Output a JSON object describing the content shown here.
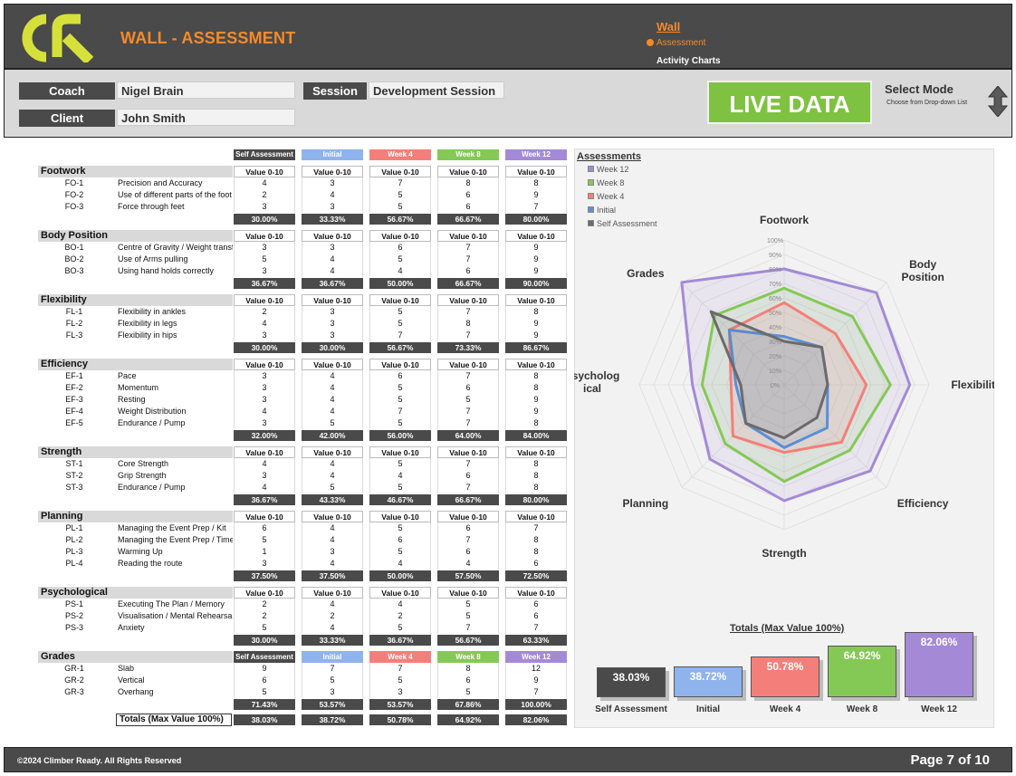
{
  "header": {
    "app_title": "WALL - ASSESSMENT",
    "nav_wall": "Wall",
    "nav_assessment": "Assessment",
    "nav_activity": "Activity Charts",
    "brand_color": "#f58a2a",
    "logo_color": "#d6e03a"
  },
  "info": {
    "coach_label": "Coach",
    "coach_value": "Nigel Brain",
    "client_label": "Client",
    "client_value": "John Smith",
    "session_label": "Session",
    "session_value": "Development Session",
    "live_button": "LIVE DATA",
    "mode_title": "Select Mode",
    "mode_hint": "Choose from Drop-down List"
  },
  "columns": [
    {
      "name": "Self Assessment",
      "color": "#4a4a4a"
    },
    {
      "name": "Initial",
      "color": "#8fb3ec"
    },
    {
      "name": "Week 4",
      "color": "#f47f7a"
    },
    {
      "name": "Week 8",
      "color": "#84c956"
    },
    {
      "name": "Week 12",
      "color": "#a48ad6"
    }
  ],
  "value_header": "Value 0-10",
  "sections": [
    {
      "name": "Footwork",
      "rows": [
        {
          "code": "FO-1",
          "desc": "Precision and Accuracy",
          "vals": [
            "4",
            "3",
            "7",
            "8",
            "8"
          ]
        },
        {
          "code": "FO-2",
          "desc": "Use of different parts of the foot",
          "vals": [
            "2",
            "4",
            "5",
            "6",
            "9"
          ]
        },
        {
          "code": "FO-3",
          "desc": "Force through feet",
          "vals": [
            "3",
            "3",
            "5",
            "6",
            "7"
          ]
        }
      ],
      "pcts": [
        "30.00%",
        "33.33%",
        "56.67%",
        "66.67%",
        "80.00%"
      ]
    },
    {
      "name": "Body Position",
      "rows": [
        {
          "code": "BO-1",
          "desc": "Centre of Gravity / Weight transfer",
          "vals": [
            "3",
            "3",
            "6",
            "7",
            "9"
          ]
        },
        {
          "code": "BO-2",
          "desc": "Use of Arms pulling",
          "vals": [
            "5",
            "4",
            "5",
            "7",
            "9"
          ]
        },
        {
          "code": "BO-3",
          "desc": "Using hand holds correctly",
          "vals": [
            "3",
            "4",
            "4",
            "6",
            "9"
          ]
        }
      ],
      "pcts": [
        "36.67%",
        "36.67%",
        "50.00%",
        "66.67%",
        "90.00%"
      ]
    },
    {
      "name": "Flexibility",
      "rows": [
        {
          "code": "FL-1",
          "desc": "Flexibility in ankles",
          "vals": [
            "2",
            "3",
            "5",
            "7",
            "8"
          ]
        },
        {
          "code": "FL-2",
          "desc": "Flexibility in legs",
          "vals": [
            "4",
            "3",
            "5",
            "8",
            "9"
          ]
        },
        {
          "code": "FL-3",
          "desc": "Flexibility in hips",
          "vals": [
            "3",
            "3",
            "7",
            "7",
            "9"
          ]
        }
      ],
      "pcts": [
        "30.00%",
        "30.00%",
        "56.67%",
        "73.33%",
        "86.67%"
      ]
    },
    {
      "name": "Efficiency",
      "rows": [
        {
          "code": "EF-1",
          "desc": "Pace",
          "vals": [
            "3",
            "4",
            "6",
            "7",
            "8"
          ]
        },
        {
          "code": "EF-2",
          "desc": "Momentum",
          "vals": [
            "3",
            "4",
            "5",
            "6",
            "8"
          ]
        },
        {
          "code": "EF-3",
          "desc": "Resting",
          "vals": [
            "3",
            "4",
            "5",
            "5",
            "9"
          ]
        },
        {
          "code": "EF-4",
          "desc": "Weight Distribution",
          "vals": [
            "4",
            "4",
            "7",
            "7",
            "9"
          ]
        },
        {
          "code": "EF-5",
          "desc": "Endurance / Pump",
          "vals": [
            "3",
            "5",
            "5",
            "7",
            "8"
          ]
        }
      ],
      "pcts": [
        "32.00%",
        "42.00%",
        "56.00%",
        "64.00%",
        "84.00%"
      ]
    },
    {
      "name": "Strength",
      "rows": [
        {
          "code": "ST-1",
          "desc": "Core Strength",
          "vals": [
            "4",
            "4",
            "5",
            "7",
            "8"
          ]
        },
        {
          "code": "ST-2",
          "desc": "Grip Strength",
          "vals": [
            "3",
            "4",
            "4",
            "6",
            "8"
          ]
        },
        {
          "code": "ST-3",
          "desc": "Endurance / Pump",
          "vals": [
            "4",
            "5",
            "5",
            "7",
            "8"
          ]
        }
      ],
      "pcts": [
        "36.67%",
        "43.33%",
        "46.67%",
        "66.67%",
        "80.00%"
      ]
    },
    {
      "name": "Planning",
      "rows": [
        {
          "code": "PL-1",
          "desc": "Managing the Event Prep / Kit",
          "vals": [
            "6",
            "4",
            "5",
            "6",
            "7"
          ]
        },
        {
          "code": "PL-2",
          "desc": "Managing the Event Prep / Time",
          "vals": [
            "5",
            "4",
            "6",
            "7",
            "8"
          ]
        },
        {
          "code": "PL-3",
          "desc": "Warming Up",
          "vals": [
            "1",
            "3",
            "5",
            "6",
            "8"
          ]
        },
        {
          "code": "PL-4",
          "desc": "Reading the route",
          "vals": [
            "3",
            "4",
            "4",
            "4",
            "6"
          ]
        }
      ],
      "pcts": [
        "37.50%",
        "37.50%",
        "50.00%",
        "57.50%",
        "72.50%"
      ]
    },
    {
      "name": "Psychological",
      "rows": [
        {
          "code": "PS-1",
          "desc": "Executing The Plan / Memory",
          "vals": [
            "2",
            "4",
            "4",
            "5",
            "6"
          ]
        },
        {
          "code": "PS-2",
          "desc": "Visualisation / Mental Rehearsal",
          "vals": [
            "2",
            "2",
            "2",
            "5",
            "6"
          ]
        },
        {
          "code": "PS-3",
          "desc": "Anxiety",
          "vals": [
            "5",
            "4",
            "5",
            "7",
            "7"
          ]
        }
      ],
      "pcts": [
        "30.00%",
        "33.33%",
        "36.67%",
        "56.67%",
        "63.33%"
      ]
    }
  ],
  "grades": {
    "name": "Grades",
    "rows": [
      {
        "code": "GR-1",
        "desc": "Slab",
        "vals": [
          "9",
          "7",
          "7",
          "8",
          "12"
        ]
      },
      {
        "code": "GR-2",
        "desc": "Vertical",
        "vals": [
          "6",
          "5",
          "5",
          "6",
          "9"
        ]
      },
      {
        "code": "GR-3",
        "desc": "Overhang",
        "vals": [
          "5",
          "3",
          "3",
          "5",
          "7"
        ]
      }
    ],
    "pcts": [
      "71.43%",
      "53.57%",
      "53.57%",
      "67.86%",
      "100.00%"
    ]
  },
  "totals": {
    "label": "Totals (Max Value 100%)",
    "values": [
      "38.03%",
      "38.72%",
      "50.78%",
      "64.92%",
      "82.06%"
    ]
  },
  "legend": {
    "title": "Assessments",
    "items": [
      "Week 12",
      "Week 8",
      "Week 4",
      "Initial",
      "Self Assessment"
    ]
  },
  "chart_data": [
    {
      "type": "radar",
      "axes": [
        "Footwork",
        "Body Position",
        "Flexibility",
        "Efficiency",
        "Strength",
        "Planning",
        "Psychological",
        "Grades"
      ],
      "axis_labels_display": [
        "Footwork",
        "Body\nPosition",
        "Flexibility",
        "Efficiency",
        "Strength",
        "Planning",
        "Psycholog\nical",
        "Grades"
      ],
      "ticks": [
        "0%",
        "10%",
        "20%",
        "30%",
        "40%",
        "50%",
        "60%",
        "70%",
        "80%",
        "90%",
        "100%"
      ],
      "rlim": [
        0,
        100
      ],
      "series": [
        {
          "name": "Week 12",
          "color": "#a48ad6",
          "values": [
            80.0,
            90.0,
            86.67,
            84.0,
            80.0,
            72.5,
            63.33,
            100.0
          ]
        },
        {
          "name": "Week 8",
          "color": "#84c956",
          "values": [
            66.67,
            66.67,
            73.33,
            64.0,
            66.67,
            57.5,
            56.67,
            67.86
          ]
        },
        {
          "name": "Week 4",
          "color": "#f47f7a",
          "values": [
            56.67,
            50.0,
            56.67,
            56.0,
            46.67,
            50.0,
            36.67,
            53.57
          ]
        },
        {
          "name": "Initial",
          "color": "#5a8fd6",
          "values": [
            33.33,
            36.67,
            30.0,
            42.0,
            43.33,
            37.5,
            33.33,
            53.57
          ]
        },
        {
          "name": "Self Assessment",
          "color": "#6b6b6b",
          "values": [
            30.0,
            36.67,
            30.0,
            32.0,
            36.67,
            37.5,
            30.0,
            71.43
          ]
        }
      ]
    },
    {
      "type": "bar",
      "title": "Totals (Max Value 100%)",
      "categories": [
        "Self Assessment",
        "Initial",
        "Week 4",
        "Week 8",
        "Week 12"
      ],
      "values": [
        38.03,
        38.72,
        50.78,
        64.92,
        82.06
      ],
      "labels": [
        "38.03%",
        "38.72%",
        "50.78%",
        "64.92%",
        "82.06%"
      ],
      "colors": [
        "#4a4a4a",
        "#8fb3ec",
        "#f47f7a",
        "#84c956",
        "#a48ad6"
      ],
      "ylim": [
        0,
        100
      ]
    }
  ],
  "footer": {
    "copyright": "©2024 Climber Ready. All Rights Reserved",
    "page": "Page 7 of 10"
  }
}
